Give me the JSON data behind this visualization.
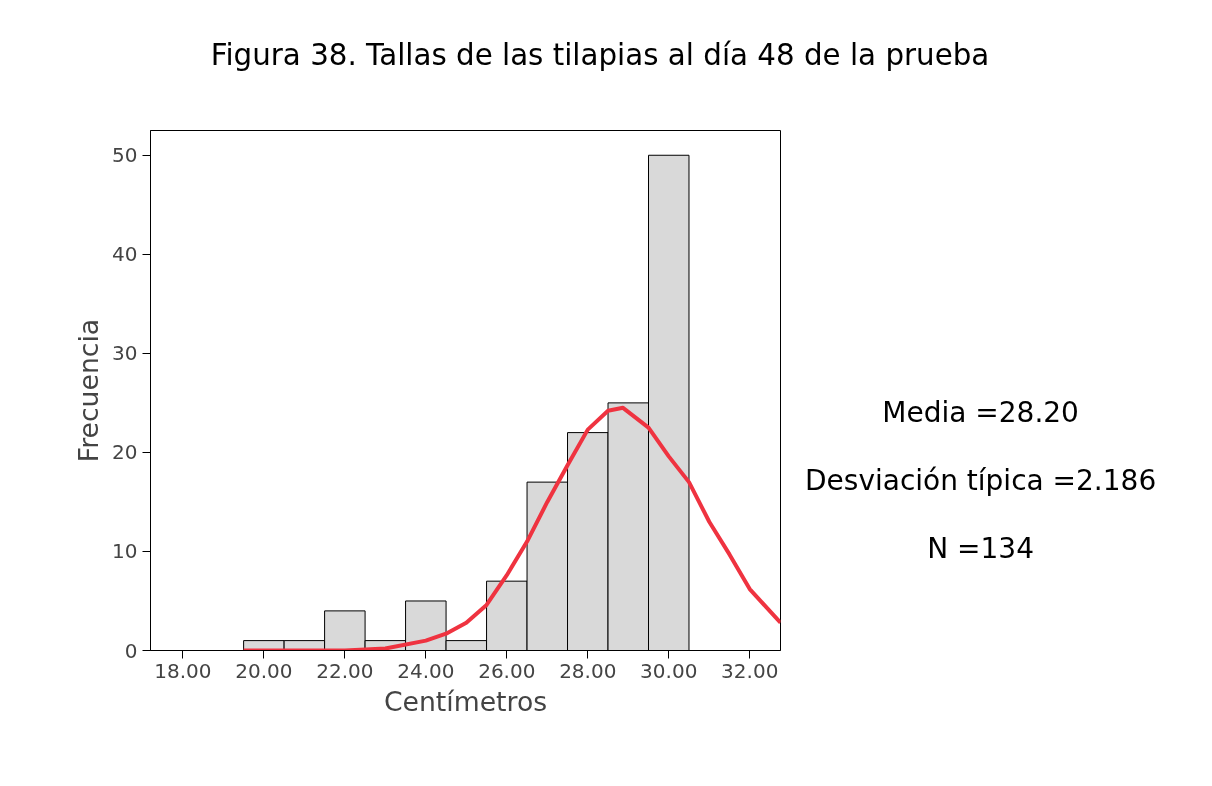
{
  "chart_data": {
    "type": "histogram",
    "title": "Figura 38. Tallas de las tilapias al día 48 de la prueba",
    "xlabel": "Centímetros",
    "ylabel": "Frecuencia",
    "bins": [
      19.5,
      20.5,
      21.5,
      22.5,
      23.5,
      24.5,
      25.5,
      26.5,
      27.5,
      28.5,
      29.5,
      30.5
    ],
    "values": [
      1,
      1,
      4,
      1,
      5,
      1,
      7,
      17,
      22,
      25,
      50
    ],
    "color": "#d9d9d9",
    "series": [
      {
        "type": "line",
        "color": "#ef3340",
        "x": [
          19.5,
          21,
          22,
          23,
          24,
          24.5,
          25,
          25.5,
          26,
          26.5,
          27,
          27.5,
          28,
          28.5,
          28.87,
          29.5,
          30,
          30.5,
          31,
          31.5,
          32,
          32.76
        ],
        "values": [
          0,
          0,
          0,
          0.2,
          1,
          1.7,
          2.8,
          4.6,
          7.6,
          11,
          15,
          18.7,
          22.3,
          24.2,
          24.5,
          22.5,
          19.6,
          17,
          13,
          9.7,
          6.2,
          2.8
        ]
      }
    ],
    "xlim": [
      17.2,
      32.76
    ],
    "ylim": [
      0,
      52.5
    ],
    "xticks": [
      {
        "value": 18,
        "label": "18.00"
      },
      {
        "value": 20,
        "label": "20.00"
      },
      {
        "value": 22,
        "label": "22.00"
      },
      {
        "value": 24,
        "label": "24.00"
      },
      {
        "value": 26,
        "label": "26.00"
      },
      {
        "value": 28,
        "label": "28.00"
      },
      {
        "value": 30,
        "label": "30.00"
      },
      {
        "value": 32,
        "label": "32.00"
      }
    ],
    "yticks": [
      0,
      10,
      20,
      30,
      40,
      50
    ],
    "annotations": [
      "Media =28.20",
      "Desviación típica =2.186",
      "N =134"
    ],
    "grid": false,
    "marker": "none",
    "line_style": "solid"
  }
}
